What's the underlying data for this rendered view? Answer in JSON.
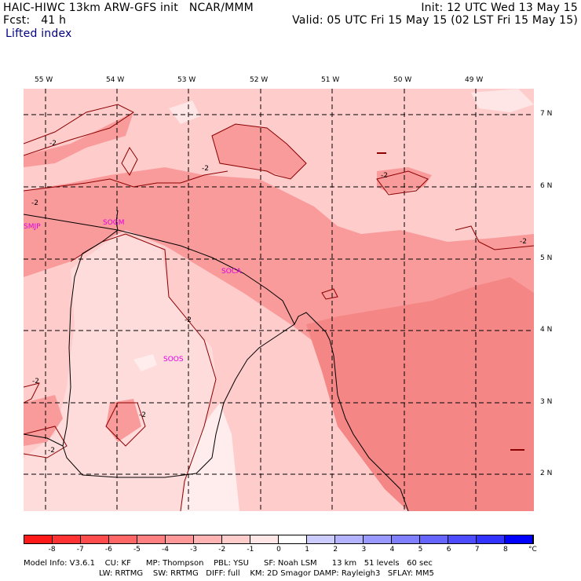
{
  "header": {
    "title": "HAIC-HIWC 13km ARW-GFS init   NCAR/MMM",
    "init": "Init: 12 UTC Wed 13 May 15",
    "fcst": "Fcst:   41 h",
    "valid": "Valid: 05 UTC Fri 15 May 15 (02 LST Fri 15 May 15)",
    "field": "Lifted index"
  },
  "longitudes": [
    "55 W",
    "54 W",
    "53 W",
    "52 W",
    "51 W",
    "50 W",
    "49 W"
  ],
  "latitudes": [
    "7 N",
    "6 N",
    "5 N",
    "4 N",
    "3 N",
    "2 N"
  ],
  "stations": [
    "SMJP",
    "SOGM",
    "SOCA",
    "SOOS"
  ],
  "contour_label": "-2",
  "colorbar": {
    "labels": [
      "-8",
      "-7",
      "-6",
      "-5",
      "-4",
      "-3",
      "-2",
      "-1",
      "0",
      "1",
      "2",
      "3",
      "4",
      "5",
      "6",
      "7",
      "8"
    ],
    "unit": "°C",
    "colors": [
      "#ff1a1a",
      "#ff3333",
      "#ff4d4d",
      "#ff6666",
      "#ff8080",
      "#ff9999",
      "#ffb3b3",
      "#ffcccc",
      "#ffe6e6",
      "#ffffff",
      "#ccccff",
      "#b3b3ff",
      "#9999ff",
      "#8080ff",
      "#6666ff",
      "#4d4dff",
      "#3333ff",
      "#0000ff"
    ]
  },
  "model_info": {
    "line1": "Model Info: V3.6.1    CU: KF      MP: Thompson    PBL: YSU      SF: Noah LSM      13 km   51 levels   60 sec",
    "line2": "LW: RRTMG    SW: RRTMG   DIFF: full    KM: 2D Smagor DAMP: Rayleigh3   SFLAY: MM5"
  },
  "colors": {
    "light": "#ffcccc",
    "mid": "#fa9b9b",
    "dark": "#f58686",
    "pale": "#ffe6e6",
    "station": "#e000e0"
  }
}
